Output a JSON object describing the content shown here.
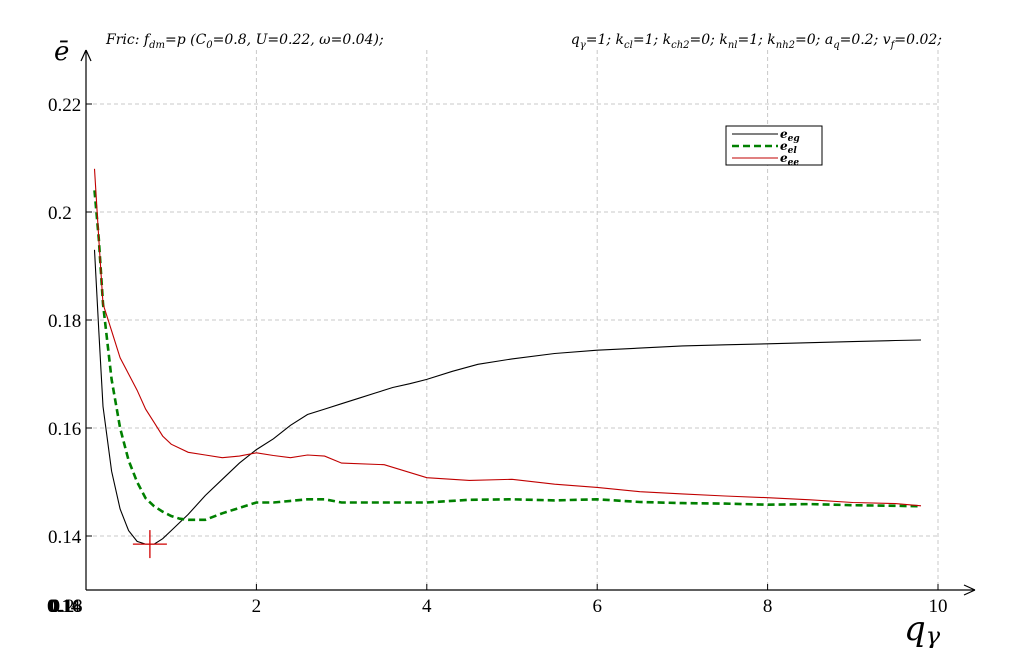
{
  "top_left_text": "Fric: fₐₘ=p (C₀=0.8, U=0.22, ω=0.04);",
  "top_left_parts": [
    "Fric: f",
    "dm",
    "=p (C",
    "0",
    "=0.8, U=0.22, ω=0.04);"
  ],
  "top_right_parts": [
    "q",
    "γ",
    "=1; k",
    "cl",
    "=1; k",
    "ch2",
    "=0; k",
    "nl",
    "=1; k",
    "nh2",
    "=0; a",
    "q",
    "=0.2; v",
    "f",
    "=0.02;"
  ],
  "origin_tick_overlap": [
    "0.14",
    "0.16",
    "0.18",
    "0.2"
  ],
  "x_axis_label": [
    "q",
    "γ"
  ],
  "y_axis_label": "ē",
  "colors": {
    "eg": "#000000",
    "el": "#008000",
    "ee": "#c00000",
    "grid": "#c8c8c8",
    "marker": "#d00000"
  },
  "chart_data": {
    "type": "line",
    "title": "",
    "xlabel": "qγ",
    "ylabel": "ē",
    "xlim": [
      0,
      10
    ],
    "ylim": [
      0.13,
      0.23
    ],
    "x_ticks": [
      0,
      2,
      4,
      6,
      8,
      10
    ],
    "x_tick_labels": [
      "0",
      "2",
      "4",
      "6",
      "8",
      "10"
    ],
    "y_ticks": [
      0.14,
      0.16,
      0.18,
      0.2,
      0.22
    ],
    "y_tick_labels": [
      "0.14",
      "0.16",
      "0.18",
      "0.2",
      "0.22"
    ],
    "grid": true,
    "legend_position": "top-right",
    "series": [
      {
        "name": "e_eg",
        "key": "eg",
        "style": "solid",
        "x": [
          0.1,
          0.15,
          0.2,
          0.3,
          0.4,
          0.5,
          0.6,
          0.7,
          0.8,
          0.9,
          1.0,
          1.2,
          1.4,
          1.6,
          1.8,
          2.0,
          2.2,
          2.4,
          2.6,
          2.8,
          3.0,
          3.2,
          3.4,
          3.6,
          3.8,
          4.0,
          4.3,
          4.6,
          5.0,
          5.5,
          6.0,
          6.5,
          7.0,
          7.5,
          8.0,
          8.5,
          9.0,
          9.5,
          9.8
        ],
        "y": [
          0.193,
          0.178,
          0.164,
          0.152,
          0.145,
          0.141,
          0.139,
          0.1385,
          0.1385,
          0.1395,
          0.141,
          0.144,
          0.1475,
          0.1505,
          0.1535,
          0.156,
          0.158,
          0.1605,
          0.1625,
          0.1635,
          0.1645,
          0.1655,
          0.1665,
          0.1675,
          0.1682,
          0.169,
          0.1705,
          0.1718,
          0.1728,
          0.1738,
          0.1744,
          0.1748,
          0.1752,
          0.1754,
          0.1756,
          0.1758,
          0.176,
          0.1762,
          0.1763
        ]
      },
      {
        "name": "e_el",
        "key": "el",
        "style": "dashed",
        "x": [
          0.1,
          0.15,
          0.2,
          0.3,
          0.4,
          0.5,
          0.6,
          0.7,
          0.8,
          0.9,
          1.0,
          1.1,
          1.2,
          1.4,
          1.6,
          1.8,
          2.0,
          2.2,
          2.4,
          2.6,
          2.8,
          3.0,
          3.5,
          4.0,
          4.5,
          5.0,
          5.5,
          6.0,
          6.5,
          7.0,
          7.5,
          8.0,
          8.5,
          9.0,
          9.5,
          9.8
        ],
        "y": [
          0.204,
          0.195,
          0.183,
          0.169,
          0.16,
          0.154,
          0.15,
          0.147,
          0.1455,
          0.1445,
          0.1437,
          0.1432,
          0.143,
          0.143,
          0.1442,
          0.1452,
          0.1462,
          0.1462,
          0.1465,
          0.1468,
          0.1468,
          0.1462,
          0.1462,
          0.1462,
          0.1467,
          0.1468,
          0.1466,
          0.1468,
          0.1463,
          0.1461,
          0.146,
          0.1458,
          0.1459,
          0.1457,
          0.1456,
          0.1455
        ]
      },
      {
        "name": "e_ee",
        "key": "ee",
        "style": "solid",
        "x": [
          0.1,
          0.15,
          0.2,
          0.3,
          0.4,
          0.5,
          0.6,
          0.7,
          0.8,
          0.9,
          1.0,
          1.2,
          1.4,
          1.6,
          1.8,
          2.0,
          2.2,
          2.4,
          2.6,
          2.8,
          3.0,
          3.5,
          4.0,
          4.5,
          5.0,
          5.5,
          6.0,
          6.5,
          7.0,
          7.5,
          8.0,
          8.5,
          9.0,
          9.5,
          9.8
        ],
        "y": [
          0.208,
          0.195,
          0.183,
          0.178,
          0.173,
          0.17,
          0.167,
          0.1635,
          0.161,
          0.1585,
          0.157,
          0.1555,
          0.155,
          0.1545,
          0.1548,
          0.1554,
          0.1549,
          0.1545,
          0.155,
          0.1548,
          0.1535,
          0.1532,
          0.1508,
          0.1503,
          0.1505,
          0.1496,
          0.149,
          0.1482,
          0.1478,
          0.1474,
          0.1471,
          0.1467,
          0.1462,
          0.146,
          0.1456
        ]
      }
    ],
    "marker": {
      "x": 0.75,
      "y": 0.1385,
      "shape": "plus"
    }
  }
}
